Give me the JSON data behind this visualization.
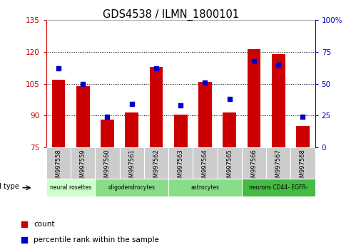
{
  "title": "GDS4538 / ILMN_1800101",
  "samples": [
    "GSM997558",
    "GSM997559",
    "GSM997560",
    "GSM997561",
    "GSM997562",
    "GSM997563",
    "GSM997564",
    "GSM997565",
    "GSM997566",
    "GSM997567",
    "GSM997568"
  ],
  "count_values": [
    107.0,
    104.0,
    88.0,
    91.5,
    113.0,
    90.5,
    106.0,
    91.5,
    121.5,
    119.0,
    85.0
  ],
  "percentile_values": [
    62,
    50,
    24,
    34,
    62,
    33,
    51,
    38,
    68,
    65,
    24
  ],
  "ylim_left": [
    75,
    135
  ],
  "ylim_right": [
    0,
    100
  ],
  "yticks_left": [
    75,
    90,
    105,
    120,
    135
  ],
  "yticks_right": [
    0,
    25,
    50,
    75,
    100
  ],
  "yticklabels_right": [
    "0",
    "25",
    "50",
    "75",
    "100%"
  ],
  "bar_color": "#cc0000",
  "dot_color": "#0000cc",
  "left_axis_color": "#cc0000",
  "right_axis_color": "#0000cc",
  "xticklabel_bg": "#cccccc",
  "cell_type_groups": [
    {
      "label": "neural rosettes",
      "start": 0,
      "end": 2,
      "color": "#ccffcc"
    },
    {
      "label": "oligodendrocytes",
      "start": 2,
      "end": 5,
      "color": "#88dd88"
    },
    {
      "label": "astrocytes",
      "start": 5,
      "end": 8,
      "color": "#88dd88"
    },
    {
      "label": "neurons CD44- EGFR-",
      "start": 8,
      "end": 11,
      "color": "#44bb44"
    }
  ],
  "legend_items": [
    {
      "label": "count",
      "color": "#cc0000"
    },
    {
      "label": "percentile rank within the sample",
      "color": "#0000cc"
    }
  ]
}
